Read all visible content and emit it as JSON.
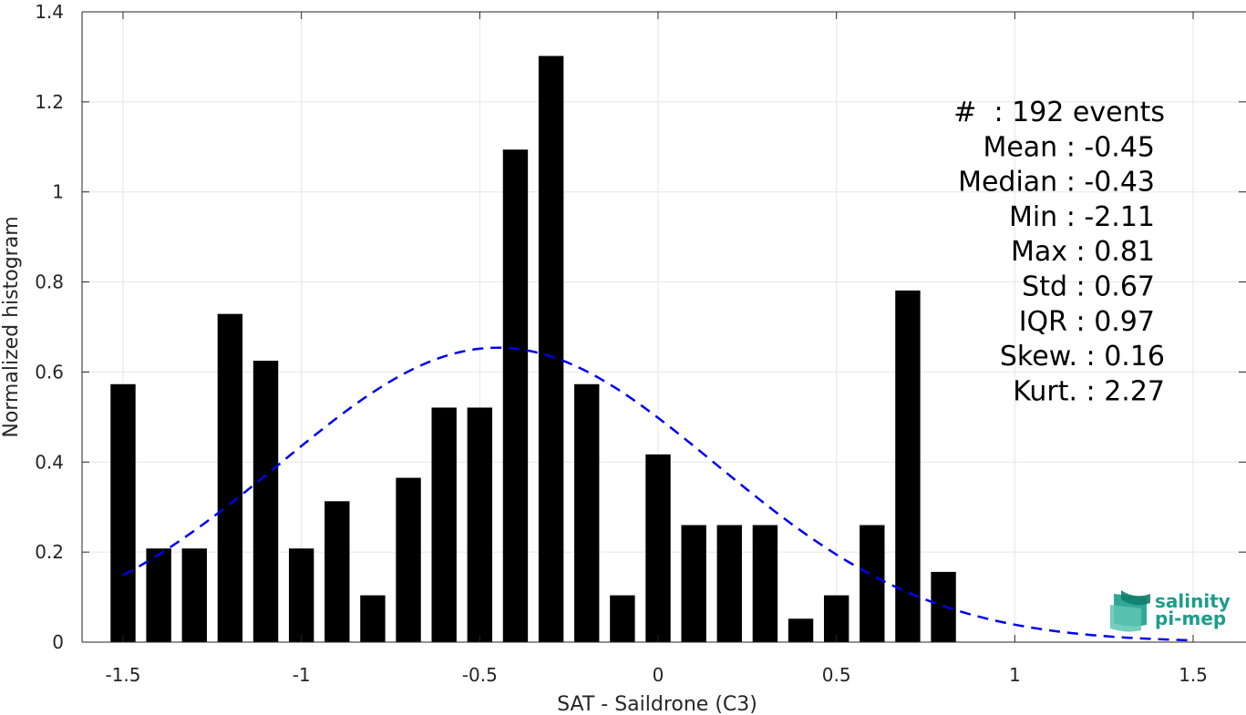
{
  "chart_data": {
    "type": "bar",
    "xlabel": "SAT - Saildrone (C3)",
    "ylabel": "Normalized histogram",
    "xlim": [
      -1.6,
      1.6
    ],
    "ylim": [
      0,
      1.4
    ],
    "grid": true,
    "x_ticks": [
      -1.5,
      -1,
      -0.5,
      0,
      0.5,
      1,
      1.5
    ],
    "x_tick_labels": [
      "-1.5",
      "-1",
      "-0.5",
      "0",
      "0.5",
      "1",
      "1.5"
    ],
    "y_ticks": [
      0,
      0.2,
      0.4,
      0.6,
      0.8,
      1,
      1.2,
      1.4
    ],
    "y_tick_labels": [
      "0",
      "0.2",
      "0.4",
      "0.6",
      "0.8",
      "1",
      "1.2",
      "1.4"
    ],
    "bar_width": 0.07,
    "bar_color": "#000000",
    "x": [
      -1.5,
      -1.4,
      -1.3,
      -1.2,
      -1.1,
      -1.0,
      -0.9,
      -0.8,
      -0.7,
      -0.6,
      -0.5,
      -0.4,
      -0.3,
      -0.2,
      -0.1,
      0.0,
      0.1,
      0.2,
      0.3,
      0.4,
      0.5,
      0.6,
      0.7,
      0.8
    ],
    "values": [
      0.573,
      0.208,
      0.208,
      0.729,
      0.625,
      0.208,
      0.313,
      0.104,
      0.365,
      0.521,
      0.521,
      1.094,
      1.302,
      0.573,
      0.104,
      0.417,
      0.26,
      0.26,
      0.26,
      0.052,
      0.104,
      0.26,
      0.781,
      0.156
    ],
    "fit_curve": {
      "type": "gaussian",
      "mean": -0.45,
      "std": 0.61,
      "peak": 0.654,
      "x_range": [
        -1.5,
        1.5
      ],
      "color": "#0000ee",
      "style": "dashed"
    },
    "stats": [
      "#  : 192 events",
      "Mean : -0.45",
      "Median : -0.43",
      "Min : -2.11",
      "Max : 0.81",
      "Std : 0.67",
      "IQR : 0.97",
      "Skew. : 0.16",
      "Kurt. : 2.27"
    ]
  },
  "logo": {
    "line1": "salinity",
    "line2": "pi-mep",
    "color": "#1a9e8a"
  }
}
